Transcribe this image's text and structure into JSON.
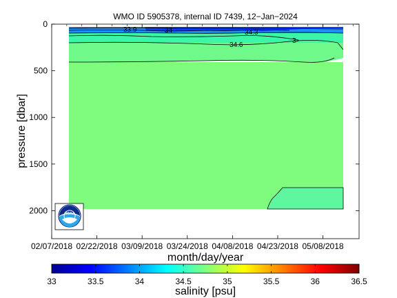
{
  "chart_data": {
    "type": "heatmap",
    "title": "WMO ID 5905378, internal ID 7439, 12−Jan−2024",
    "xlabel": "month/day/year",
    "ylabel": "pressure [dbar]",
    "x_ticks": [
      "02/07/2018",
      "02/22/2018",
      "03/09/2018",
      "03/24/2018",
      "04/08/2018",
      "04/23/2018",
      "05/08/2018"
    ],
    "x_range": [
      "02/07/2018",
      "05/20/2018"
    ],
    "data_x_range": [
      "02/16/2018",
      "05/14/2018"
    ],
    "y_ticks": [
      0,
      500,
      1000,
      1500,
      2000
    ],
    "ylim": [
      0,
      2300
    ],
    "y_reversed": true,
    "colorbar": {
      "label": "salinity [psu]",
      "ticks": [
        "33",
        "33.5",
        "34",
        "34.5",
        "35",
        "35.5",
        "36",
        "36.5"
      ],
      "range": [
        33,
        36.5
      ],
      "colormap": "jet"
    },
    "bands": [
      {
        "from_pressure": 0,
        "to_pressure": 30,
        "salinity": 34.05,
        "color": "#1d90ff"
      },
      {
        "from_pressure": 30,
        "to_pressure": 100,
        "salinity": 34.3,
        "color": "#0b7bff"
      },
      {
        "from_pressure": 100,
        "to_pressure": 200,
        "salinity": 34.55,
        "color": "#3cf5a6"
      },
      {
        "from_pressure": 200,
        "to_pressure": 400,
        "salinity": 34.65,
        "color": "#6ef98a"
      },
      {
        "from_pressure": 400,
        "to_pressure": 2000,
        "salinity": 34.72,
        "color": "#7ffb7e"
      },
      {
        "from_pressure": 1750,
        "to_pressure": 2000,
        "salinity": 34.7,
        "color": "#5ef7a0",
        "region": "deep water after 04/24/2018"
      }
    ],
    "contour_labels": [
      "33.9",
      "34",
      "34.3",
      "34.6",
      "3"
    ],
    "colors": {
      "deep": "#7ffb7e",
      "mid": "#6ef98a",
      "deep_late": "#5ef7a0",
      "surface": "#1d90ff",
      "surface_dark": "#0b3cff"
    }
  },
  "logo": {
    "text": "NOAA"
  }
}
